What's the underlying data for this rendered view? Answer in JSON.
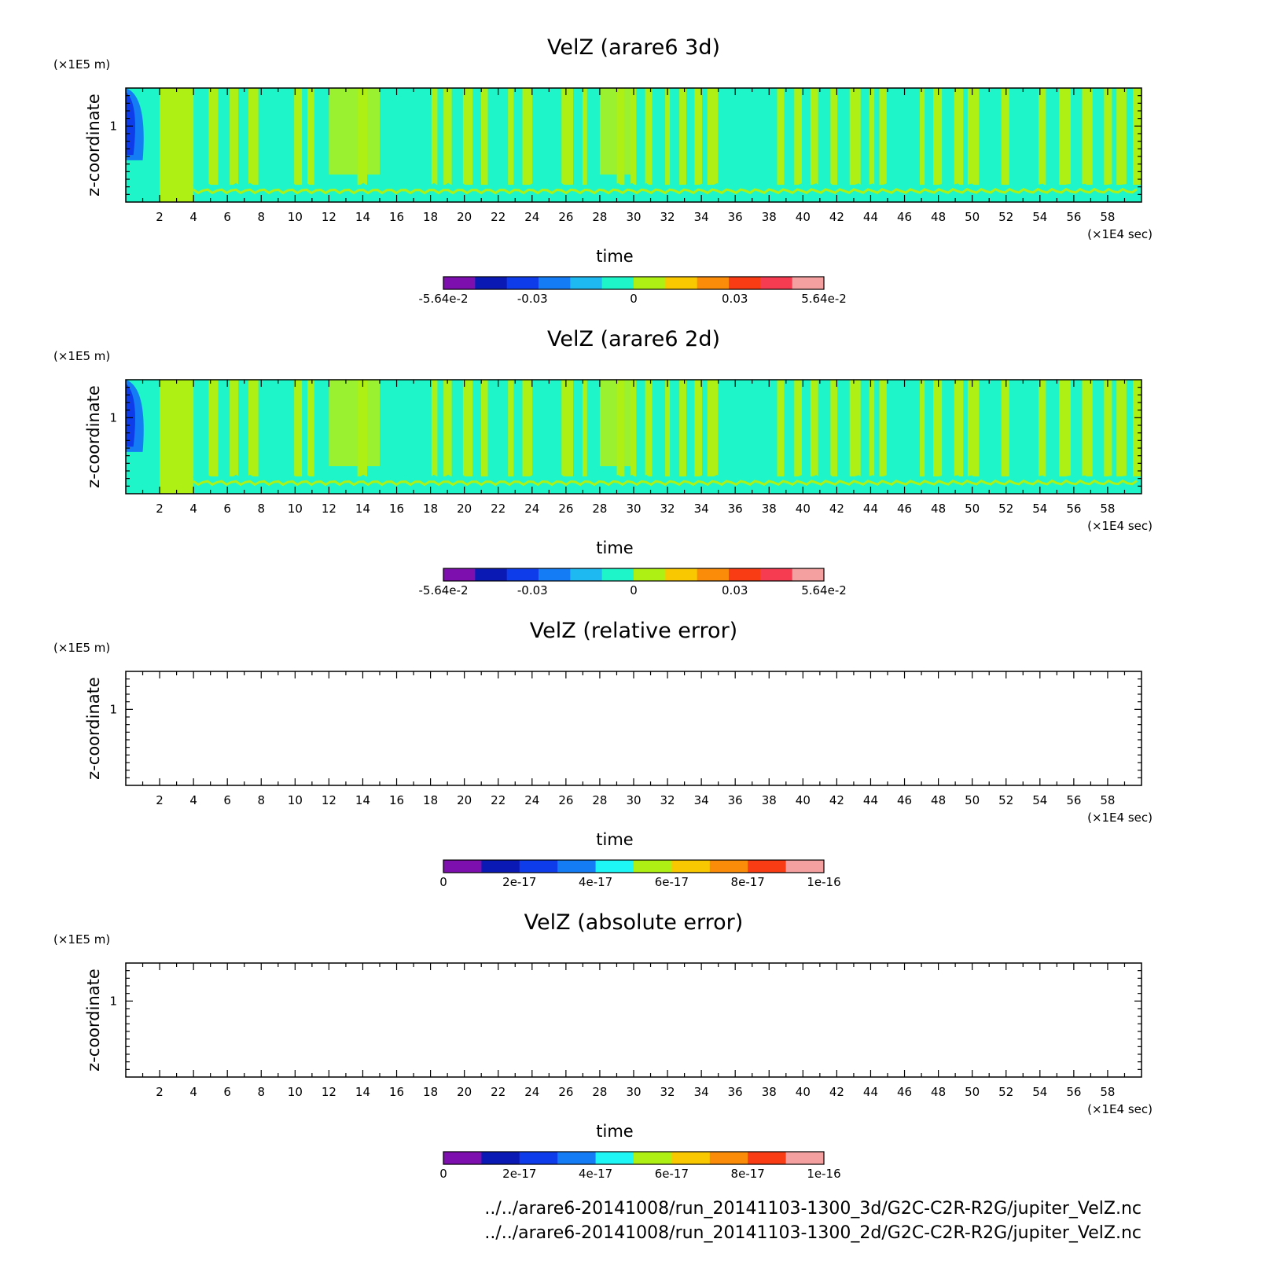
{
  "chart_data": [
    {
      "type": "heatmap",
      "title": "VelZ (arare6 3d)",
      "xlabel": "time",
      "x_unit": "(×1E4 sec)",
      "ylabel": "z-coordinate",
      "y_unit": "(×1E5 m)",
      "xlim": [
        0,
        60
      ],
      "ylim": [
        0,
        1.5
      ],
      "x_ticks": [
        "2",
        "4",
        "6",
        "8",
        "10",
        "12",
        "14",
        "16",
        "18",
        "20",
        "22",
        "24",
        "26",
        "28",
        "30",
        "32",
        "34",
        "36",
        "38",
        "40",
        "42",
        "44",
        "46",
        "48",
        "50",
        "52",
        "54",
        "56",
        "58"
      ],
      "y_ticks": [
        "1"
      ],
      "colorbar": {
        "colors": [
          "#7d0faf",
          "#0a19b4",
          "#0f3ceb",
          "#147df5",
          "#1eb9f0",
          "#1ef5c8",
          "#aff014",
          "#fac800",
          "#fa8c0a",
          "#fa3c14",
          "#f53c50",
          "#f5a0a0"
        ],
        "labels": [
          "-5.64e-2",
          "-0.03",
          "0",
          "0.03",
          "5.64e-2"
        ]
      }
    },
    {
      "type": "heatmap",
      "title": "VelZ (arare6 2d)",
      "xlabel": "time",
      "x_unit": "(×1E4 sec)",
      "ylabel": "z-coordinate",
      "y_unit": "(×1E5 m)",
      "xlim": [
        0,
        60
      ],
      "ylim": [
        0,
        1.5
      ],
      "x_ticks": [
        "2",
        "4",
        "6",
        "8",
        "10",
        "12",
        "14",
        "16",
        "18",
        "20",
        "22",
        "24",
        "26",
        "28",
        "30",
        "32",
        "34",
        "36",
        "38",
        "40",
        "42",
        "44",
        "46",
        "48",
        "50",
        "52",
        "54",
        "56",
        "58"
      ],
      "y_ticks": [
        "1"
      ],
      "colorbar": {
        "colors": [
          "#7d0faf",
          "#0a19b4",
          "#0f3ceb",
          "#147df5",
          "#1eb9f0",
          "#1ef5c8",
          "#aff014",
          "#fac800",
          "#fa8c0a",
          "#fa3c14",
          "#f53c50",
          "#f5a0a0"
        ],
        "labels": [
          "-5.64e-2",
          "-0.03",
          "0",
          "0.03",
          "5.64e-2"
        ]
      }
    },
    {
      "type": "heatmap",
      "title": "VelZ (relative error)",
      "xlabel": "time",
      "x_unit": "(×1E4 sec)",
      "ylabel": "z-coordinate",
      "y_unit": "(×1E5 m)",
      "xlim": [
        0,
        60
      ],
      "ylim": [
        0,
        1.5
      ],
      "x_ticks": [
        "2",
        "4",
        "6",
        "8",
        "10",
        "12",
        "14",
        "16",
        "18",
        "20",
        "22",
        "24",
        "26",
        "28",
        "30",
        "32",
        "34",
        "36",
        "38",
        "40",
        "42",
        "44",
        "46",
        "48",
        "50",
        "52",
        "54",
        "56",
        "58"
      ],
      "y_ticks": [
        "1"
      ],
      "colorbar": {
        "colors": [
          "#7d0faf",
          "#0a19b4",
          "#0f3ceb",
          "#147df5",
          "#1ef5f5",
          "#aff014",
          "#fac800",
          "#fa8c0a",
          "#fa3c14",
          "#f5a0a0"
        ],
        "labels": [
          "0",
          "2e-17",
          "4e-17",
          "6e-17",
          "8e-17",
          "1e-16"
        ]
      }
    },
    {
      "type": "heatmap",
      "title": "VelZ (absolute error)",
      "xlabel": "time",
      "x_unit": "(×1E4 sec)",
      "ylabel": "z-coordinate",
      "y_unit": "(×1E5 m)",
      "xlim": [
        0,
        60
      ],
      "ylim": [
        0,
        1.5
      ],
      "x_ticks": [
        "2",
        "4",
        "6",
        "8",
        "10",
        "12",
        "14",
        "16",
        "18",
        "20",
        "22",
        "24",
        "26",
        "28",
        "30",
        "32",
        "34",
        "36",
        "38",
        "40",
        "42",
        "44",
        "46",
        "48",
        "50",
        "52",
        "54",
        "56",
        "58"
      ],
      "y_ticks": [
        "1"
      ],
      "colorbar": {
        "colors": [
          "#7d0faf",
          "#0a19b4",
          "#0f3ceb",
          "#147df5",
          "#1ef5f5",
          "#aff014",
          "#fac800",
          "#fa8c0a",
          "#fa3c14",
          "#f5a0a0"
        ],
        "labels": [
          "0",
          "2e-17",
          "4e-17",
          "6e-17",
          "8e-17",
          "1e-16"
        ]
      }
    }
  ],
  "footer": {
    "paths": [
      "../../arare6-20141008/run_20141103-1300_3d/G2C-C2R-R2G/jupiter_VelZ.nc",
      "../../arare6-20141008/run_20141103-1300_2d/G2C-C2R-R2G/jupiter_VelZ.nc"
    ]
  },
  "colors": {
    "field_green": "#1ef5c8",
    "field_yellow": "#aff014",
    "field_blue": "#147df5",
    "field_darkblue": "#0f3ceb"
  }
}
